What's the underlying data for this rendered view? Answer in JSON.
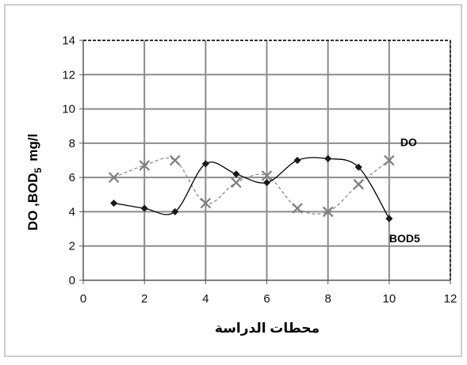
{
  "chart_data": {
    "type": "line",
    "xlabel": "محطات الدراسة",
    "ylabel_main": "DO ,BOD",
    "ylabel_sub": "5",
    "ylabel_unit": "mg/l",
    "xlim": [
      0,
      12
    ],
    "ylim": [
      0,
      14
    ],
    "xticks": [
      0,
      2,
      4,
      6,
      8,
      10,
      12
    ],
    "yticks": [
      0,
      2,
      4,
      6,
      8,
      10,
      12,
      14
    ],
    "grid": true,
    "series": [
      {
        "name": "DO",
        "marker": "x",
        "line_style": "dashed",
        "color": "#8a8a8a",
        "x": [
          1,
          2,
          3,
          4,
          5,
          6,
          7,
          8,
          9,
          10
        ],
        "y": [
          6.0,
          6.7,
          7.0,
          4.5,
          5.7,
          6.1,
          4.2,
          4.0,
          5.6,
          7.0
        ]
      },
      {
        "name": "BOD5",
        "marker": "diamond",
        "line_style": "solid",
        "color": "#000000",
        "x": [
          1,
          2,
          3,
          4,
          5,
          6,
          7,
          8,
          9,
          10
        ],
        "y": [
          4.5,
          4.2,
          4.0,
          6.8,
          6.2,
          5.7,
          7.0,
          7.1,
          6.6,
          3.6
        ]
      }
    ]
  }
}
